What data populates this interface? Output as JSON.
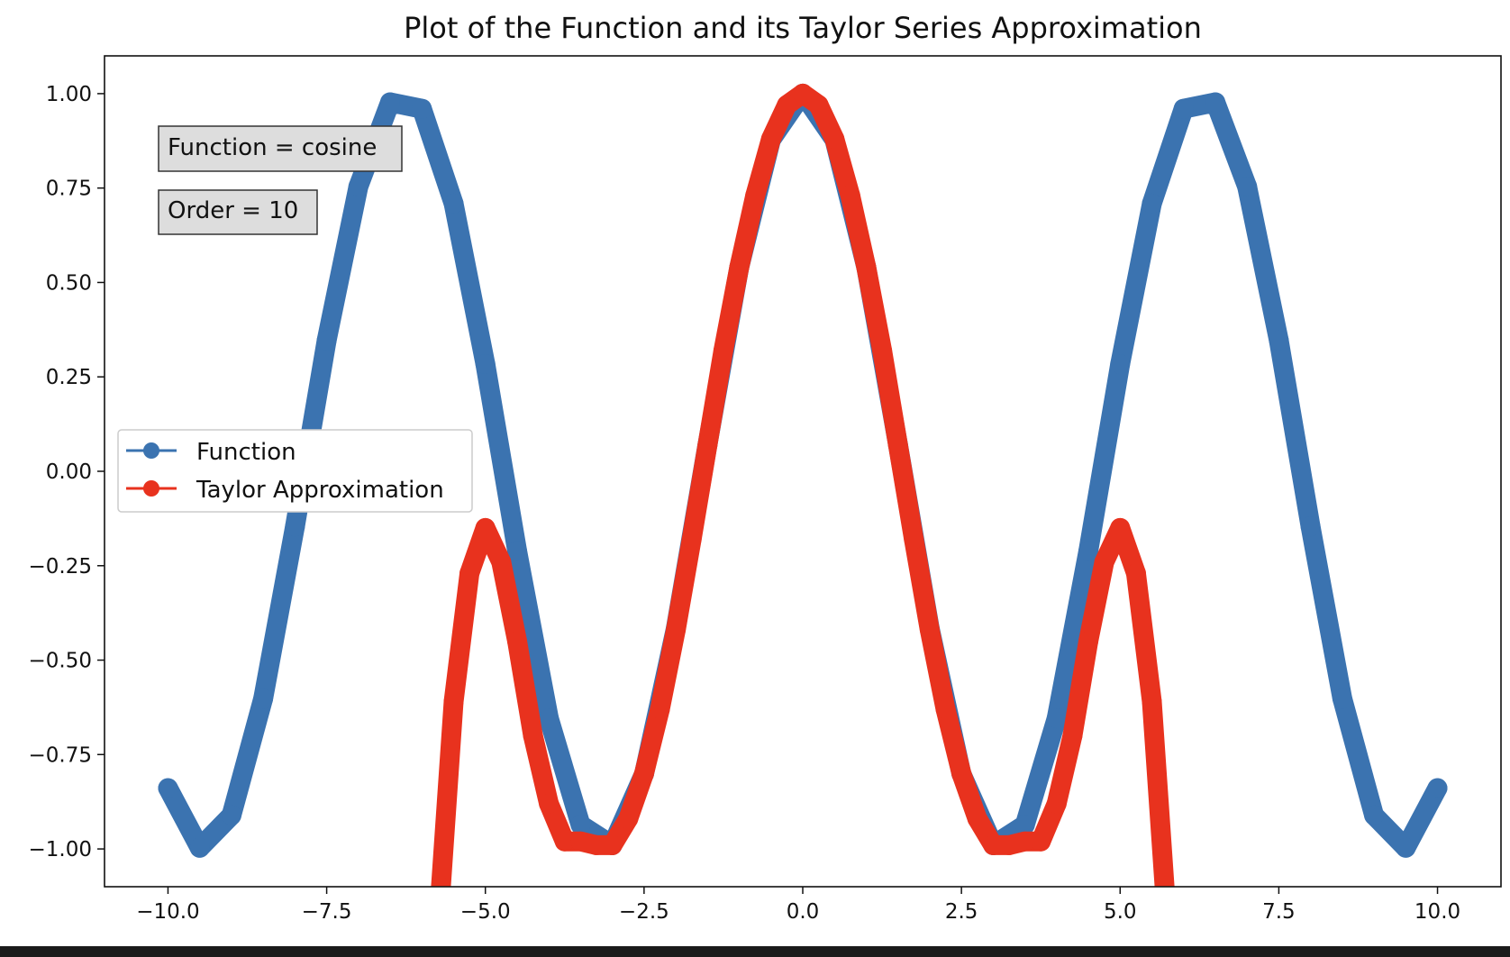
{
  "chart_data": {
    "type": "scatter",
    "title": "Plot of the Function and its Taylor Series Approximation",
    "xlabel": "",
    "ylabel": "",
    "xlim": [
      -11.0,
      11.0
    ],
    "ylim": [
      -1.1,
      1.1
    ],
    "x_ticks": [
      -10.0,
      -7.5,
      -5.0,
      -2.5,
      0.0,
      2.5,
      5.0,
      7.5,
      10.0
    ],
    "x_tick_labels": [
      "−10.0",
      "−7.5",
      "−5.0",
      "−2.5",
      "0.0",
      "2.5",
      "5.0",
      "7.5",
      "10.0"
    ],
    "y_ticks": [
      1.0,
      0.75,
      0.5,
      0.25,
      0.0,
      -0.25,
      -0.5,
      -0.75,
      -1.0
    ],
    "y_tick_labels": [
      "1.00",
      "0.75",
      "0.50",
      "0.25",
      "0.00",
      "−0.25",
      "−0.50",
      "−0.75",
      "−1.00"
    ],
    "grid": false,
    "legend": {
      "placement": "center-left",
      "entries": [
        "Function",
        "Taylor Approximation"
      ]
    },
    "annotations": [
      "Function = cosine",
      "Order = 10"
    ],
    "series": [
      {
        "name": "Function",
        "color": "#3b73b0",
        "x": [
          -10.0,
          -9.5,
          -9.0,
          -8.5,
          -8.0,
          -7.5,
          -7.0,
          -6.5,
          -6.0,
          -5.5,
          -5.0,
          -4.5,
          -4.0,
          -3.5,
          -3.0,
          -2.5,
          -2.0,
          -1.5,
          -1.0,
          -0.5,
          0.0,
          0.5,
          1.0,
          1.5,
          2.0,
          2.5,
          3.0,
          3.5,
          4.0,
          4.5,
          5.0,
          5.5,
          6.0,
          6.5,
          7.0,
          7.5,
          8.0,
          8.5,
          9.0,
          9.5,
          10.0
        ],
        "y": [
          -0.839,
          -0.997,
          -0.911,
          -0.602,
          -0.146,
          0.347,
          0.754,
          0.977,
          0.96,
          0.709,
          0.284,
          -0.211,
          -0.654,
          -0.936,
          -0.99,
          -0.801,
          -0.416,
          0.071,
          0.54,
          0.878,
          1.0,
          0.878,
          0.54,
          0.071,
          -0.416,
          -0.801,
          -0.99,
          -0.936,
          -0.654,
          -0.211,
          0.284,
          0.709,
          0.96,
          0.977,
          0.754,
          0.347,
          -0.146,
          -0.602,
          -0.911,
          -0.997,
          -0.839
        ]
      },
      {
        "name": "Taylor Approximation",
        "color": "#e8321e",
        "x": [
          -5.7,
          -5.5,
          -5.25,
          -5.0,
          -4.75,
          -4.5,
          -4.25,
          -4.0,
          -3.75,
          -3.5,
          -3.25,
          -3.0,
          -2.75,
          -2.5,
          -2.25,
          -2.0,
          -1.75,
          -1.5,
          -1.25,
          -1.0,
          -0.75,
          -0.5,
          -0.25,
          0.0,
          0.25,
          0.5,
          0.75,
          1.0,
          1.25,
          1.5,
          1.75,
          2.0,
          2.25,
          2.5,
          2.75,
          3.0,
          3.25,
          3.5,
          3.75,
          4.0,
          4.25,
          4.5,
          4.75,
          5.0,
          5.25,
          5.5,
          5.7
        ],
        "y": [
          -1.1,
          -0.61,
          -0.27,
          -0.15,
          -0.24,
          -0.45,
          -0.7,
          -0.88,
          -0.98,
          -0.98,
          -0.99,
          -0.99,
          -0.92,
          -0.8,
          -0.63,
          -0.42,
          -0.18,
          0.07,
          0.32,
          0.54,
          0.73,
          0.88,
          0.97,
          1.0,
          0.97,
          0.88,
          0.73,
          0.54,
          0.32,
          0.07,
          -0.18,
          -0.42,
          -0.63,
          -0.8,
          -0.92,
          -0.99,
          -0.99,
          -0.98,
          -0.98,
          -0.88,
          -0.7,
          -0.45,
          -0.24,
          -0.15,
          -0.27,
          -0.61,
          -1.1
        ]
      }
    ]
  }
}
